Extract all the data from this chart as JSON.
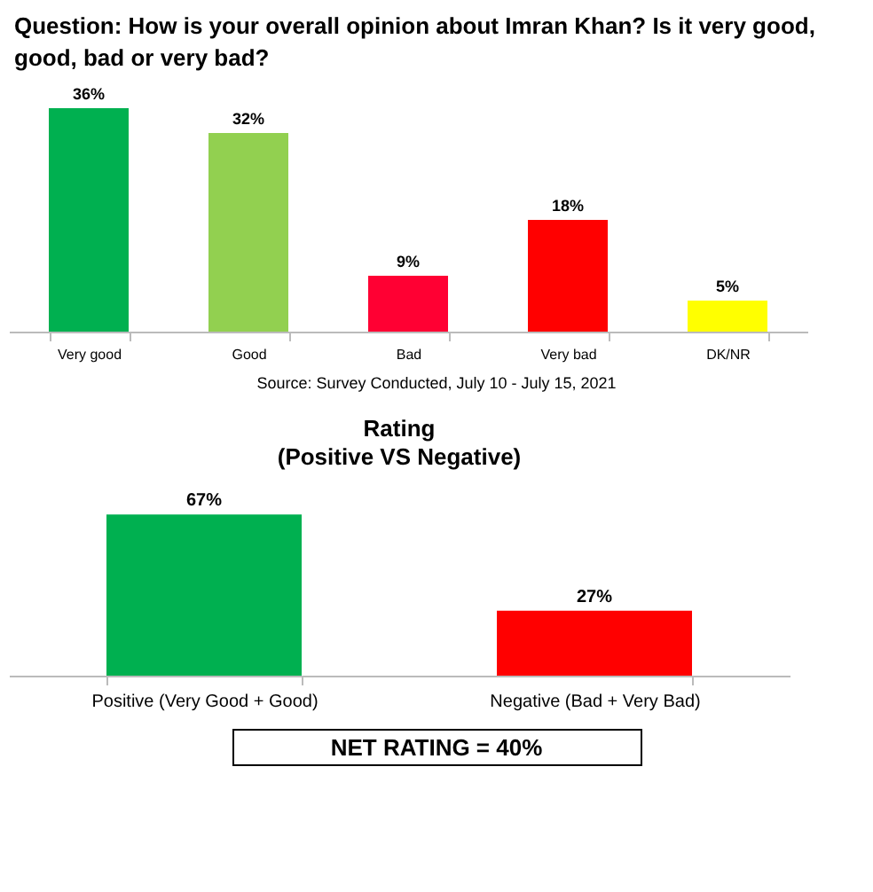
{
  "chart_data": [
    {
      "type": "bar",
      "title": "Question: How is your overall opinion about Imran Khan? Is it very good, good, bad or very bad?",
      "categories": [
        "Very good",
        "Good",
        "Bad",
        "Very bad",
        "DK/NR"
      ],
      "values": [
        36,
        32,
        9,
        18,
        5
      ],
      "colors": [
        "#00b050",
        "#92d050",
        "#ff0033",
        "#ff0000",
        "#ffff00"
      ],
      "value_labels": [
        "36%",
        "32%",
        "9%",
        "18%",
        "5%"
      ],
      "annotations": [
        "Source: Survey Conducted, July 10 - July 15, 2021"
      ]
    },
    {
      "type": "bar",
      "title": "Rating",
      "subtitle": "(Positive VS Negative)",
      "categories": [
        "Positive (Very Good + Good)",
        "Negative (Bad + Very Bad)"
      ],
      "values": [
        67,
        27
      ],
      "colors": [
        "#00b050",
        "#ff0000"
      ],
      "value_labels": [
        "67%",
        "27%"
      ],
      "annotations": [
        "NET RATING = 40%"
      ]
    }
  ]
}
